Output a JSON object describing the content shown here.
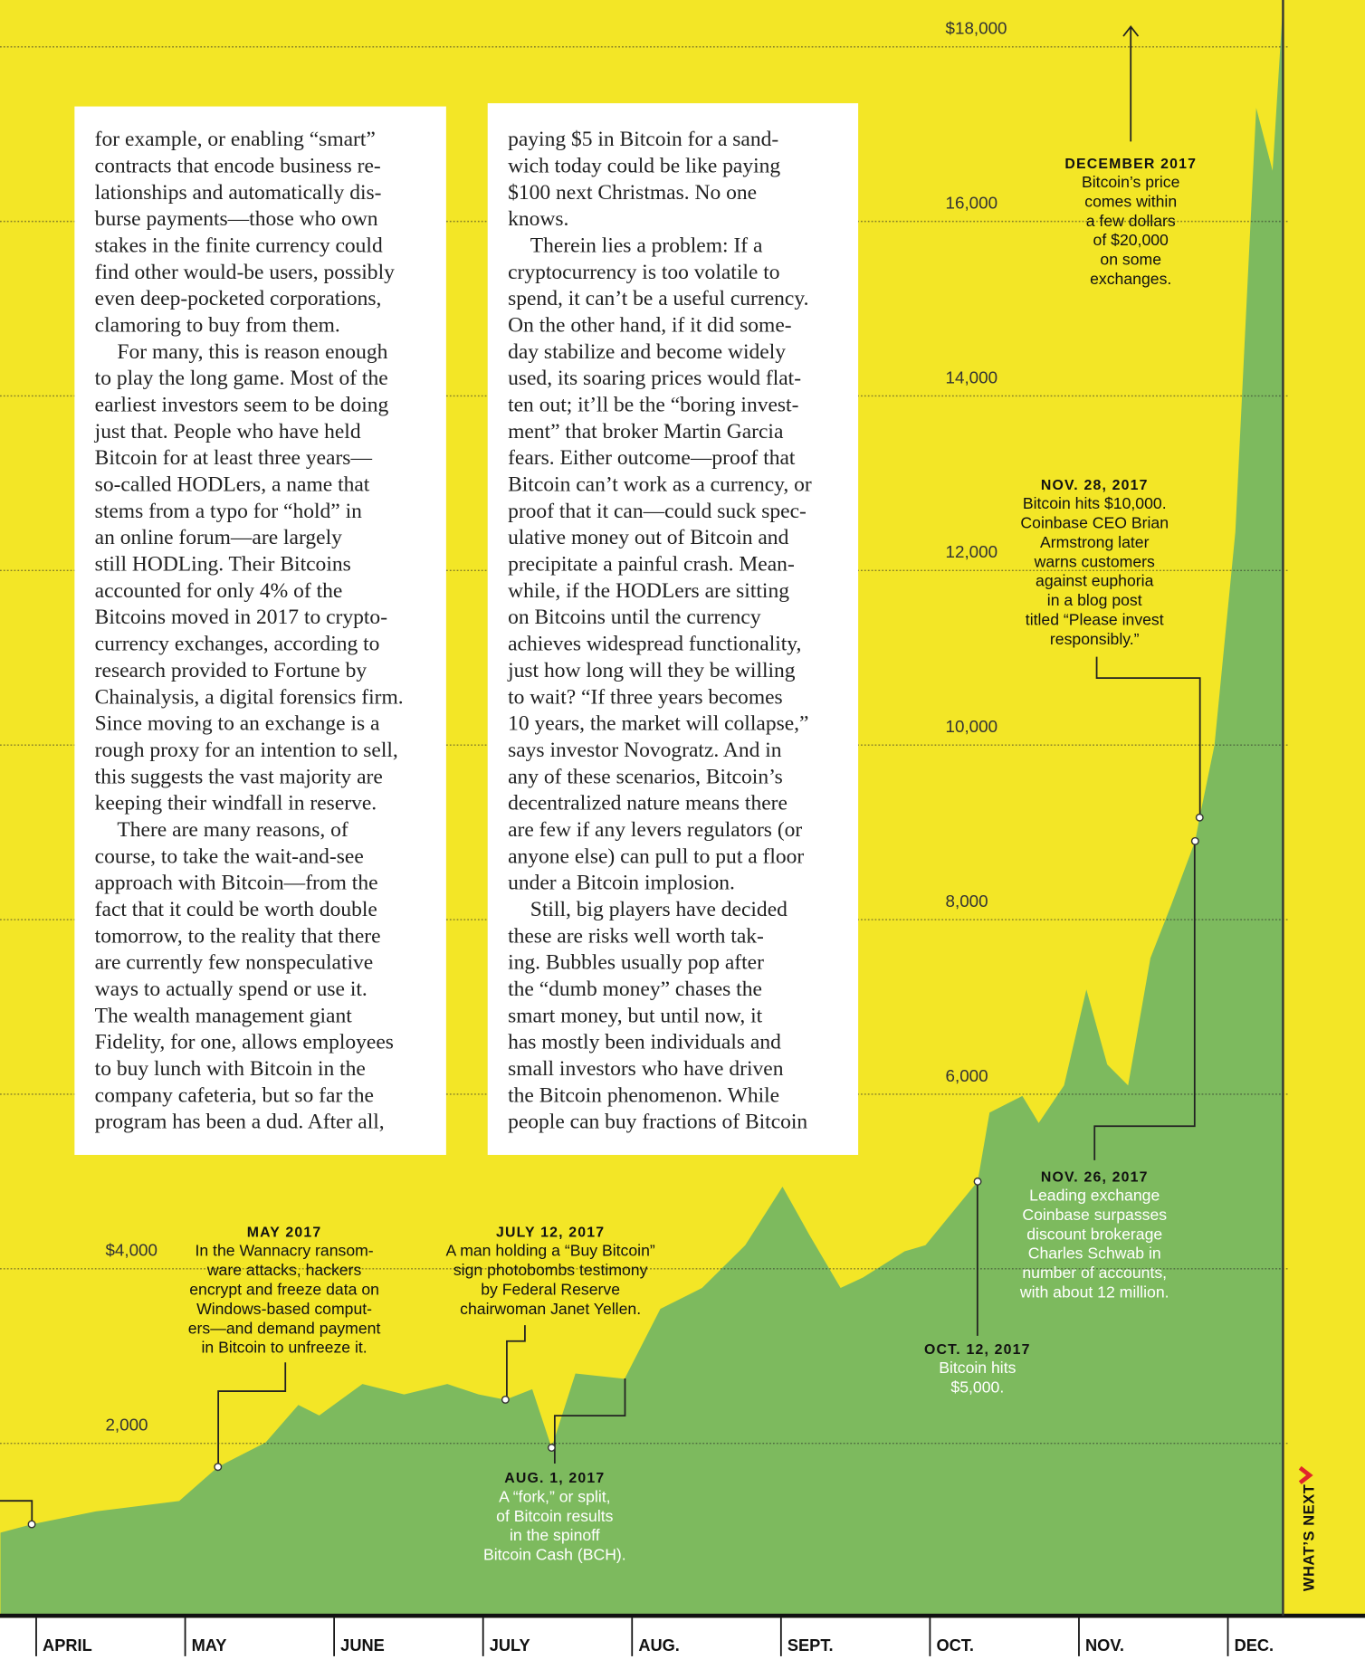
{
  "chart_data": {
    "type": "area",
    "color": "#7dba5e",
    "x": [
      -0.24,
      -0.03,
      0.4,
      0.96,
      1.22,
      1.54,
      1.76,
      1.9,
      2.19,
      2.47,
      2.76,
      2.97,
      3.15,
      3.33,
      3.46,
      3.62,
      3.95,
      4.19,
      4.47,
      4.76,
      5.01,
      5.19,
      5.4,
      5.55,
      5.83,
      5.97,
      6.32,
      6.4,
      6.62,
      6.73,
      6.9,
      7.05,
      7.19,
      7.33,
      7.48,
      7.62,
      7.78,
      7.81,
      7.91,
      8.05,
      8.12,
      8.19,
      8.3,
      8.37
    ],
    "values": [
      976,
      1073,
      1220,
      1340,
      1730,
      2010,
      2440,
      2320,
      2680,
      2560,
      2680,
      2560,
      2500,
      2620,
      1950,
      2800,
      2740,
      3540,
      3780,
      4270,
      4940,
      4390,
      3780,
      3900,
      4200,
      4270,
      5000,
      5790,
      5980,
      5670,
      6100,
      7200,
      6340,
      6100,
      7560,
      8170,
      8900,
      9170,
      10000,
      12440,
      14880,
      17300,
      16580,
      18500
    ],
    "xlim": [
      -0.243,
      8.37
    ],
    "xticks": [
      {
        "value": 0,
        "label": "APRIL"
      },
      {
        "value": 1,
        "label": "MAY"
      },
      {
        "value": 2,
        "label": "JUNE"
      },
      {
        "value": 3,
        "label": "JULY"
      },
      {
        "value": 4,
        "label": "AUG."
      },
      {
        "value": 5,
        "label": "SEPT."
      },
      {
        "value": 6,
        "label": "OCT."
      },
      {
        "value": 7,
        "label": "NOV."
      },
      {
        "value": 8,
        "label": "DEC."
      }
    ],
    "ylim": [
      0,
      18500
    ],
    "yticks": [
      {
        "value": 2000,
        "label": "2,000"
      },
      {
        "value": 4000,
        "label": "$4,000"
      },
      {
        "value": 6000,
        "label": "6,000"
      },
      {
        "value": 8000,
        "label": "8,000"
      },
      {
        "value": 10000,
        "label": "10,000"
      },
      {
        "value": 12000,
        "label": "12,000"
      },
      {
        "value": 14000,
        "label": "14,000"
      },
      {
        "value": 16000,
        "label": "16,000"
      },
      {
        "value": 18000,
        "label": "$18,000"
      }
    ],
    "grid": true,
    "annotations": [
      {
        "title": "MAY 2017",
        "lines": [
          "In the Wannacry ransom-",
          "ware attacks, hackers",
          "encrypt and freeze data on",
          "Windows-based comput-",
          "ers—and demand payment",
          "in Bitcoin to unfreeze it."
        ]
      },
      {
        "title": "JULY 12, 2017",
        "lines": [
          "A man holding a “Buy Bitcoin”",
          "sign photobombs testimony",
          "by Federal Reserve",
          "chairwoman Janet Yellen."
        ]
      },
      {
        "title": "AUG. 1, 2017",
        "lines": [
          "A “fork,” or split,",
          "of Bitcoin results",
          "in the spinoff",
          "Bitcoin Cash (BCH)."
        ]
      },
      {
        "title": "OCT. 12, 2017",
        "lines": [
          "Bitcoin hits",
          "$5,000."
        ]
      },
      {
        "title": "NOV. 26, 2017",
        "lines": [
          "Leading exchange",
          "Coinbase surpasses",
          "discount brokerage",
          "Charles Schwab in",
          "number of accounts,",
          "with about 12 million."
        ]
      },
      {
        "title": "NOV. 28, 2017",
        "lines": [
          "Bitcoin hits $10,000.",
          "Coinbase CEO Brian",
          "Armstrong later",
          "warns customers",
          "against euphoria",
          "in a blog post",
          "titled “Please invest",
          "responsibly.”"
        ]
      },
      {
        "title": "DECEMBER 2017",
        "lines": [
          "Bitcoin’s price",
          "comes within",
          "a few dollars",
          "of $20,000",
          "on some",
          "exchanges."
        ]
      }
    ]
  },
  "article": {
    "columns": [
      {
        "paragraphs": [
          {
            "lines": [
              "for example, or enabling “smart”",
              "contracts that encode business re-",
              "lationships and automatically dis-",
              "burse payments—those who own",
              "stakes in the finite currency could",
              "find other would-be users, possibly",
              "even deep-pocketed corporations,",
              "clamoring to buy from them."
            ]
          },
          {
            "lines": [
              "For many, this is reason enough",
              "to play the long game. Most of the",
              "earliest investors seem to be doing",
              "just that. People who have held",
              "Bitcoin for at least three years—",
              "so-called HODLers, a name that",
              "stems from a typo for “hold” in",
              "an online forum—are largely",
              "still HODLing. Their Bitcoins",
              "accounted for only 4% of the",
              "Bitcoins moved in 2017 to crypto-",
              "currency exchanges, according to",
              "research provided to Fortune by",
              "Chainalysis, a digital forensics firm.",
              "Since moving to an exchange is a",
              "rough proxy for an intention to sell,",
              "this suggests the vast majority are",
              "keeping their windfall in reserve."
            ]
          },
          {
            "lines": [
              "There are many reasons, of",
              "course, to take the wait-and-see",
              "approach with Bitcoin—from the",
              "fact that it could be worth double",
              "tomorrow, to the reality that there",
              "are currently few nonspeculative",
              "ways to actually spend or use it.",
              "The wealth management giant",
              "Fidelity, for one, allows employees",
              "to buy lunch with Bitcoin in the",
              "company cafeteria, but so far the",
              "program has been a dud. After all,"
            ]
          }
        ]
      },
      {
        "paragraphs": [
          {
            "lines": [
              "paying $5 in Bitcoin for a sand-",
              "wich today could be like paying",
              "$100 next Christmas. No one",
              "knows."
            ]
          },
          {
            "lines": [
              "Therein lies a problem: If a",
              "cryptocurrency is too volatile to",
              "spend, it can’t be a useful currency.",
              "On the other hand, if it did some-",
              "day stabilize and become widely",
              "used, its soaring prices would flat-",
              "ten out; it’ll be the “boring invest-",
              "ment” that broker Martin Garcia",
              "fears. Either outcome—proof that",
              "Bitcoin can’t work as a currency, or",
              "proof that it can—could suck spec-",
              "ulative money out of Bitcoin and",
              "precipitate a painful crash. Mean-",
              "while, if the HODLers are sitting",
              "on Bitcoins until the currency",
              "achieves widespread functionality,",
              "just how long will they be willing",
              "to wait? “If three years becomes",
              "10 years, the market will collapse,”",
              "says investor Novogratz. And in",
              "any of these scenarios, Bitcoin’s",
              "decentralized nature means there",
              "are few if any levers regulators (or",
              "anyone else) can pull to put a floor",
              "under a Bitcoin implosion."
            ]
          },
          {
            "lines": [
              "Still, big players have decided",
              "these are risks well worth tak-",
              "ing. Bubbles usually pop after",
              "the “dumb money” chases the",
              "smart money, but until now, it",
              "has mostly been individuals and",
              "small investors who have driven",
              "the Bitcoin phenomenon. While",
              "people can buy fractions of Bitcoin"
            ]
          }
        ]
      }
    ]
  },
  "side_tab": "WHAT’S NEXT"
}
